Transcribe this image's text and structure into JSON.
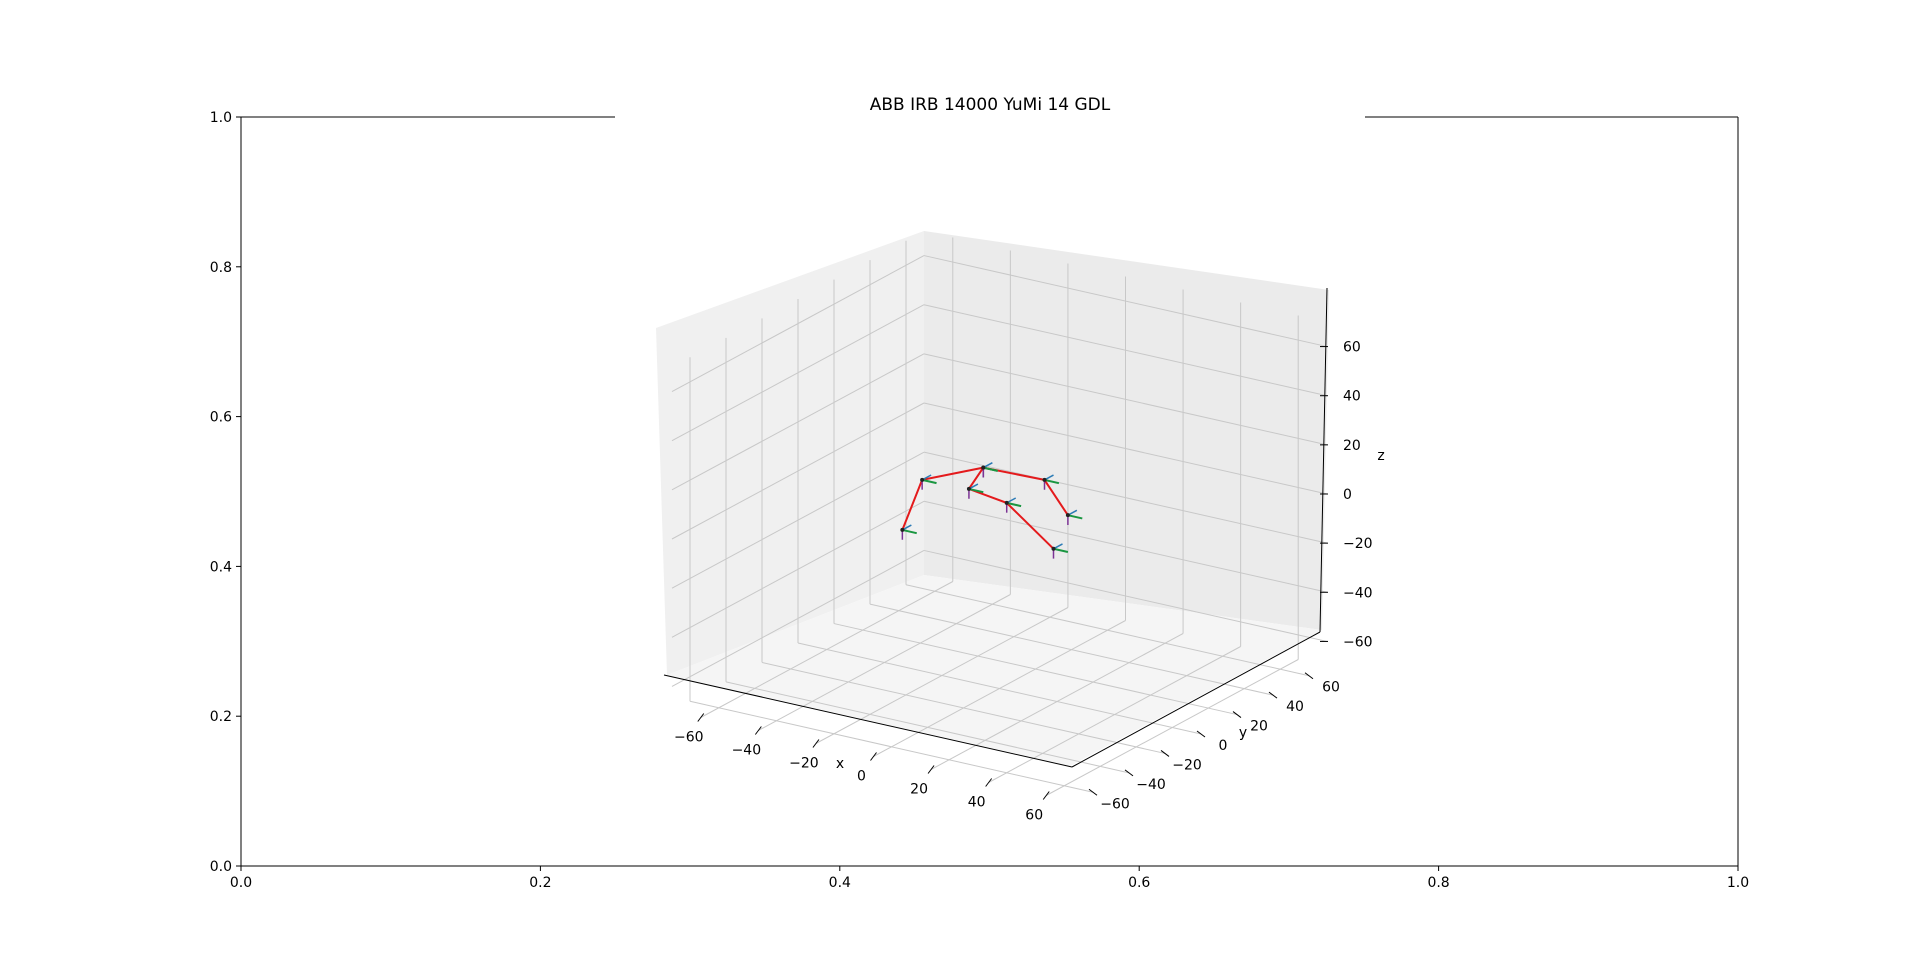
{
  "title": "ABB IRB 14000 YuMi 14 GDL",
  "colors": {
    "link": "#e41a1c",
    "frame_x": "#1a9641",
    "frame_y": "#2c7bb6",
    "frame_z": "#7b3294",
    "pane_left": "#f0f0f0",
    "pane_back": "#ececec",
    "pane_floor": "#f4f4f4",
    "grid": "#c8c8c8"
  },
  "axes2d": {
    "xticks": [
      "0.0",
      "0.2",
      "0.4",
      "0.6",
      "0.8",
      "1.0"
    ],
    "yticks": [
      "0.0",
      "0.2",
      "0.4",
      "0.6",
      "0.8",
      "1.0"
    ]
  },
  "chart_data": {
    "type": "line",
    "projection": "3d",
    "xlabel": "x",
    "ylabel": "y",
    "zlabel": "z",
    "xlim": [
      -70,
      70
    ],
    "ylim": [
      -70,
      70
    ],
    "zlim": [
      -70,
      70
    ],
    "xticks": [
      "−60",
      "−40",
      "−20",
      "0",
      "20",
      "40",
      "60"
    ],
    "yticks": [
      "−60",
      "−40",
      "−20",
      "0",
      "20",
      "40",
      "60"
    ],
    "zticks": [
      "−60",
      "−40",
      "−20",
      "0",
      "20",
      "40",
      "60"
    ],
    "grid": true,
    "series": [
      {
        "points": [
          [
            -40,
            10,
            -20
          ],
          [
            -30,
            5,
            5
          ],
          [
            -15,
            15,
            10
          ],
          [
            -20,
            15,
            0
          ],
          [
            -10,
            20,
            -5
          ],
          [
            0,
            30,
            -25
          ]
        ]
      },
      {
        "points": [
          [
            -15,
            15,
            10
          ],
          [
            0,
            25,
            5
          ],
          [
            5,
            30,
            -10
          ]
        ]
      }
    ]
  }
}
